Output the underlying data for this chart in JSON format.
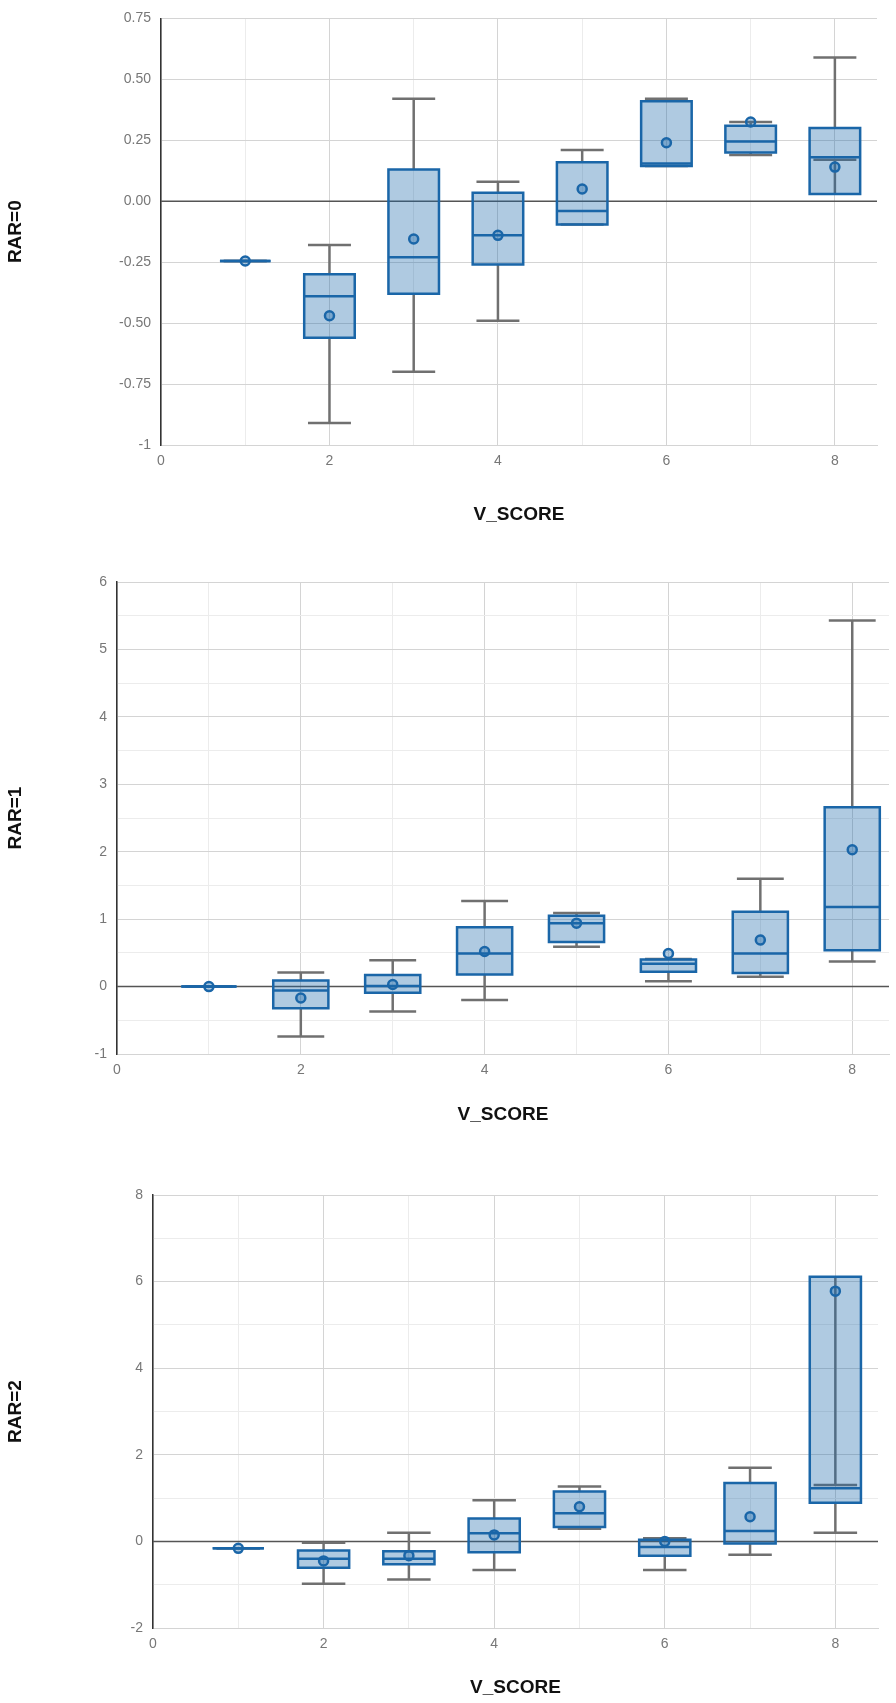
{
  "chart_data": [
    {
      "type": "box",
      "xlabel": "V_SCORE",
      "ylabel": "RAR=0",
      "x": [
        1,
        2,
        3,
        4,
        5,
        6,
        7,
        8
      ],
      "xlim": [
        0,
        8.5
      ],
      "xticks": [
        0,
        {
          "value": 1,
          "label": null
        },
        2,
        {
          "value": 3,
          "label": null
        },
        4,
        {
          "value": 5,
          "label": null
        },
        6,
        {
          "value": 7,
          "label": null
        },
        8
      ],
      "ylim": [
        -1,
        0.75
      ],
      "yticks": [
        -1.0,
        {
          "value": -0.75,
          "label": "-0.75"
        },
        {
          "value": -0.5,
          "label": "-0.50"
        },
        {
          "value": -0.25,
          "label": "-0.25"
        },
        {
          "value": 0,
          "label": "0.00"
        },
        {
          "value": 0.25,
          "label": "0.25"
        },
        {
          "value": 0.5,
          "label": "0.50"
        },
        {
          "value": 0.75,
          "label": "0.75"
        }
      ],
      "grid": true,
      "marker": "circle",
      "ref_lines": [
        {
          "axis": "y",
          "value": 0,
          "color": "#555555"
        }
      ],
      "series": [
        {
          "color": "#1a66a8",
          "boxes": [
            {
              "low": -0.245,
              "q1": -0.245,
              "median": -0.245,
              "q3": -0.245,
              "high": -0.245,
              "mean": -0.245
            },
            {
              "low": -0.91,
              "q1": -0.56,
              "median": -0.39,
              "q3": -0.3,
              "high": -0.18,
              "mean": -0.47
            },
            {
              "low": -0.7,
              "q1": -0.38,
              "median": -0.23,
              "q3": 0.13,
              "high": 0.42,
              "mean": -0.155
            },
            {
              "low": -0.49,
              "q1": -0.26,
              "median": -0.14,
              "q3": 0.035,
              "high": 0.08,
              "mean": -0.14
            },
            {
              "low": -0.095,
              "q1": -0.095,
              "median": -0.04,
              "q3": 0.16,
              "high": 0.21,
              "mean": 0.05
            },
            {
              "low": 0.145,
              "q1": 0.145,
              "median": 0.155,
              "q3": 0.41,
              "high": 0.42,
              "mean": 0.24
            },
            {
              "low": 0.19,
              "q1": 0.2,
              "median": 0.245,
              "q3": 0.31,
              "high": 0.325,
              "mean": 0.325
            },
            {
              "low": 0.17,
              "q1": 0.03,
              "median": 0.18,
              "q3": 0.3,
              "high": 0.59,
              "mean": 0.14
            }
          ]
        }
      ]
    },
    {
      "type": "box",
      "xlabel": "V_SCORE",
      "ylabel": "RAR=1",
      "x": [
        1,
        2,
        3,
        4,
        5,
        6,
        7,
        8
      ],
      "xlim": [
        0,
        8.4
      ],
      "xticks": [
        0,
        {
          "value": 1,
          "label": null
        },
        2,
        {
          "value": 3,
          "label": null
        },
        4,
        {
          "value": 5,
          "label": null
        },
        6,
        {
          "value": 7,
          "label": null
        },
        8
      ],
      "ylim": [
        -1,
        6
      ],
      "yticks": [
        -1,
        {
          "value": -0.5,
          "label": null
        },
        0,
        {
          "value": 0.5,
          "label": null
        },
        1,
        {
          "value": 1.5,
          "label": null
        },
        2,
        {
          "value": 2.5,
          "label": null
        },
        3,
        {
          "value": 3.5,
          "label": null
        },
        4,
        {
          "value": 4.5,
          "label": null
        },
        5,
        {
          "value": 5.5,
          "label": null
        },
        6
      ],
      "grid": true,
      "marker": "circle",
      "ref_lines": [
        {
          "axis": "y",
          "value": 0,
          "color": "#555555"
        }
      ],
      "series": [
        {
          "color": "#1a66a8",
          "boxes": [
            {
              "low": 0,
              "q1": 0,
              "median": 0,
              "q3": 0,
              "high": 0,
              "mean": 0
            },
            {
              "low": -0.74,
              "q1": -0.32,
              "median": -0.06,
              "q3": 0.09,
              "high": 0.21,
              "mean": -0.17
            },
            {
              "low": -0.37,
              "q1": -0.09,
              "median": 0.01,
              "q3": 0.17,
              "high": 0.39,
              "mean": 0.03
            },
            {
              "low": -0.2,
              "q1": 0.18,
              "median": 0.49,
              "q3": 0.88,
              "high": 1.27,
              "mean": 0.52
            },
            {
              "low": 0.59,
              "q1": 0.66,
              "median": 0.94,
              "q3": 1.05,
              "high": 1.09,
              "mean": 0.94
            },
            {
              "low": 0.08,
              "q1": 0.22,
              "median": 0.34,
              "q3": 0.4,
              "high": 0.41,
              "mean": 0.49
            },
            {
              "low": 0.145,
              "q1": 0.2,
              "median": 0.49,
              "q3": 1.11,
              "high": 1.6,
              "mean": 0.69
            },
            {
              "low": 0.37,
              "q1": 0.54,
              "median": 1.18,
              "q3": 2.66,
              "high": 5.43,
              "mean": 2.03
            }
          ]
        }
      ]
    },
    {
      "type": "box",
      "xlabel": "V_SCORE",
      "ylabel": "RAR=2",
      "x": [
        1,
        2,
        3,
        4,
        5,
        6,
        7,
        8
      ],
      "xlim": [
        0,
        8.5
      ],
      "xticks": [
        0,
        {
          "value": 1,
          "label": null
        },
        2,
        {
          "value": 3,
          "label": null
        },
        4,
        {
          "value": 5,
          "label": null
        },
        6,
        {
          "value": 7,
          "label": null
        },
        8
      ],
      "ylim": [
        -2,
        8
      ],
      "yticks": [
        -2,
        {
          "value": -1,
          "label": null
        },
        0,
        {
          "value": 1,
          "label": null
        },
        2,
        {
          "value": 3,
          "label": null
        },
        4,
        {
          "value": 5,
          "label": null
        },
        6,
        {
          "value": 7,
          "label": null
        },
        8
      ],
      "grid": true,
      "marker": "circle",
      "ref_lines": [
        {
          "axis": "y",
          "value": 0,
          "color": "#555555"
        }
      ],
      "series": [
        {
          "color": "#1a66a8",
          "boxes": [
            {
              "low": -0.16,
              "q1": -0.16,
              "median": -0.16,
              "q3": -0.16,
              "high": -0.16,
              "mean": -0.16
            },
            {
              "low": -0.98,
              "q1": -0.61,
              "median": -0.4,
              "q3": -0.21,
              "high": -0.03,
              "mean": -0.45
            },
            {
              "low": -0.88,
              "q1": -0.53,
              "median": -0.4,
              "q3": -0.23,
              "high": 0.2,
              "mean": -0.33
            },
            {
              "low": -0.66,
              "q1": -0.25,
              "median": 0.19,
              "q3": 0.53,
              "high": 0.95,
              "mean": 0.15
            },
            {
              "low": 0.29,
              "q1": 0.33,
              "median": 0.65,
              "q3": 1.15,
              "high": 1.27,
              "mean": 0.8
            },
            {
              "low": -0.66,
              "q1": -0.33,
              "median": -0.13,
              "q3": 0.04,
              "high": 0.07,
              "mean": 0
            },
            {
              "low": -0.31,
              "q1": -0.05,
              "median": 0.24,
              "q3": 1.35,
              "high": 1.7,
              "mean": 0.57
            },
            {
              "low": 0.2,
              "q1": 0.89,
              "median": 1.23,
              "q3": 6.11,
              "high": 1.3,
              "mean": 5.78
            }
          ]
        }
      ]
    }
  ]
}
